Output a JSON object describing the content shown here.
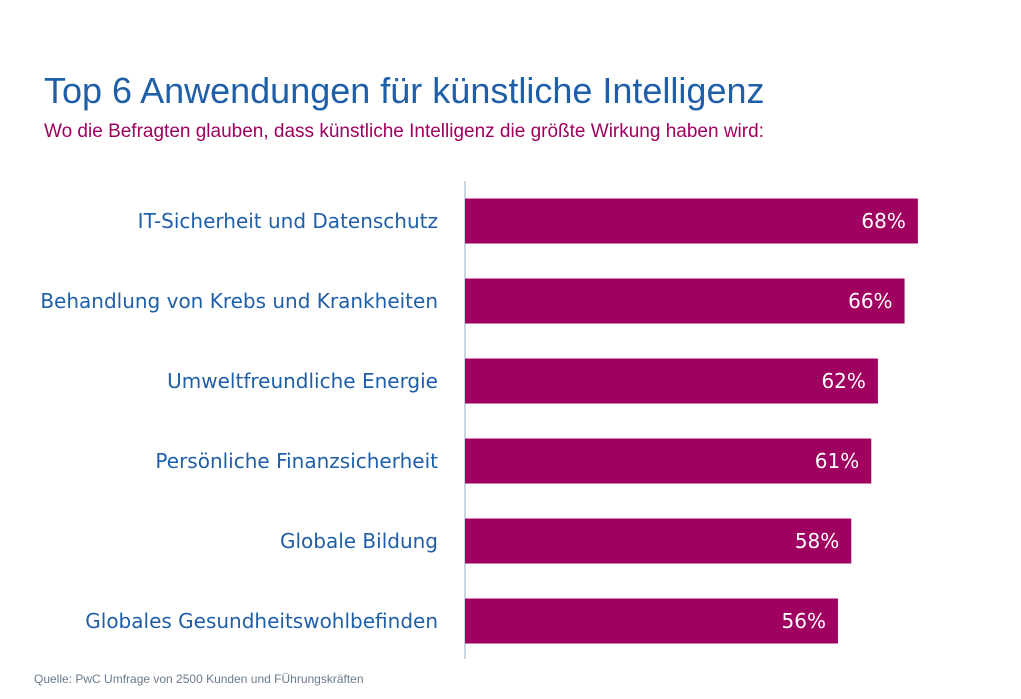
{
  "chart_data": {
    "type": "bar",
    "orientation": "horizontal",
    "title": "Top 6 Anwendungen für künstliche Intelligenz",
    "subtitle": "Wo die Befragten glauben, dass künstliche Intelligenz die größte Wirkung haben wird:",
    "categories": [
      "IT-Sicherheit und Datenschutz",
      "Behandlung von Krebs und Krankheiten",
      "Umweltfreundliche Energie",
      "Persönliche Finanzsicherheit",
      "Globale Bildung",
      "Globales Gesundheitswohlbefinden"
    ],
    "values": [
      68,
      66,
      62,
      61,
      58,
      56
    ],
    "value_labels": [
      "68%",
      "66%",
      "62%",
      "61%",
      "58%",
      "56%"
    ],
    "unit": "%",
    "xlim": [
      0,
      100
    ],
    "grid": false,
    "source": "Quelle: PwC Umfrage von 2500 Kunden und FÜhrungskräften"
  },
  "colors": {
    "bar": "#a0005f",
    "title": "#1f5fa8",
    "subtitle": "#a0005f",
    "axis": "#c9d6e4"
  }
}
